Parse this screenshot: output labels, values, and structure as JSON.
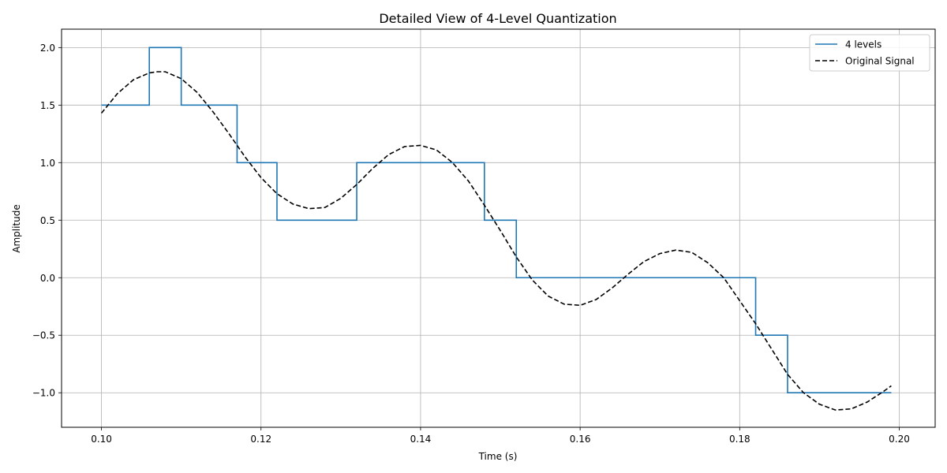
{
  "chart_data": {
    "type": "line",
    "title": "Detailed View of 4-Level Quantization",
    "xlabel": "Time (s)",
    "ylabel": "Amplitude",
    "xlim": [
      0.095,
      0.2045
    ],
    "ylim": [
      -1.3,
      2.16
    ],
    "x_ticks": [
      0.1,
      0.12,
      0.14,
      0.16,
      0.18,
      0.2
    ],
    "x_tick_labels": [
      "0.10",
      "0.12",
      "0.14",
      "0.16",
      "0.18",
      "0.20"
    ],
    "y_ticks": [
      -1.0,
      -0.5,
      0.0,
      0.5,
      1.0,
      1.5,
      2.0
    ],
    "y_tick_labels": [
      "−1.0",
      "−0.5",
      "0.0",
      "0.5",
      "1.0",
      "1.5",
      "2.0"
    ],
    "grid": true,
    "legend_position": "top-right",
    "series": [
      {
        "name": "4 levels",
        "style": "step",
        "color": "#1f77b4",
        "x": [
          0.1,
          0.106,
          0.11,
          0.117,
          0.122,
          0.132,
          0.148,
          0.152,
          0.182,
          0.186,
          0.199
        ],
        "values": [
          1.5,
          2.0,
          1.5,
          1.0,
          0.5,
          1.0,
          0.5,
          0.0,
          -0.5,
          -1.0,
          -1.0
        ]
      },
      {
        "name": "Original Signal",
        "style": "dashed",
        "color": "#000000",
        "x": [
          0.1,
          0.102,
          0.104,
          0.106,
          0.107,
          0.108,
          0.11,
          0.112,
          0.114,
          0.116,
          0.118,
          0.12,
          0.122,
          0.124,
          0.126,
          0.128,
          0.13,
          0.132,
          0.134,
          0.136,
          0.138,
          0.14,
          0.142,
          0.144,
          0.146,
          0.148,
          0.15,
          0.152,
          0.154,
          0.156,
          0.158,
          0.16,
          0.162,
          0.164,
          0.166,
          0.168,
          0.17,
          0.172,
          0.174,
          0.176,
          0.178,
          0.18,
          0.182,
          0.184,
          0.186,
          0.188,
          0.19,
          0.192,
          0.194,
          0.196,
          0.198,
          0.199
        ],
        "values": [
          1.43,
          1.6,
          1.72,
          1.78,
          1.79,
          1.79,
          1.73,
          1.61,
          1.44,
          1.25,
          1.05,
          0.87,
          0.73,
          0.64,
          0.6,
          0.61,
          0.69,
          0.81,
          0.95,
          1.07,
          1.14,
          1.15,
          1.11,
          1.0,
          0.84,
          0.63,
          0.41,
          0.18,
          -0.02,
          -0.16,
          -0.23,
          -0.24,
          -0.19,
          -0.09,
          0.03,
          0.14,
          0.21,
          0.24,
          0.22,
          0.13,
          0.0,
          -0.2,
          -0.4,
          -0.62,
          -0.84,
          -1.0,
          -1.1,
          -1.15,
          -1.14,
          -1.08,
          -0.99,
          -0.94
        ]
      }
    ]
  }
}
